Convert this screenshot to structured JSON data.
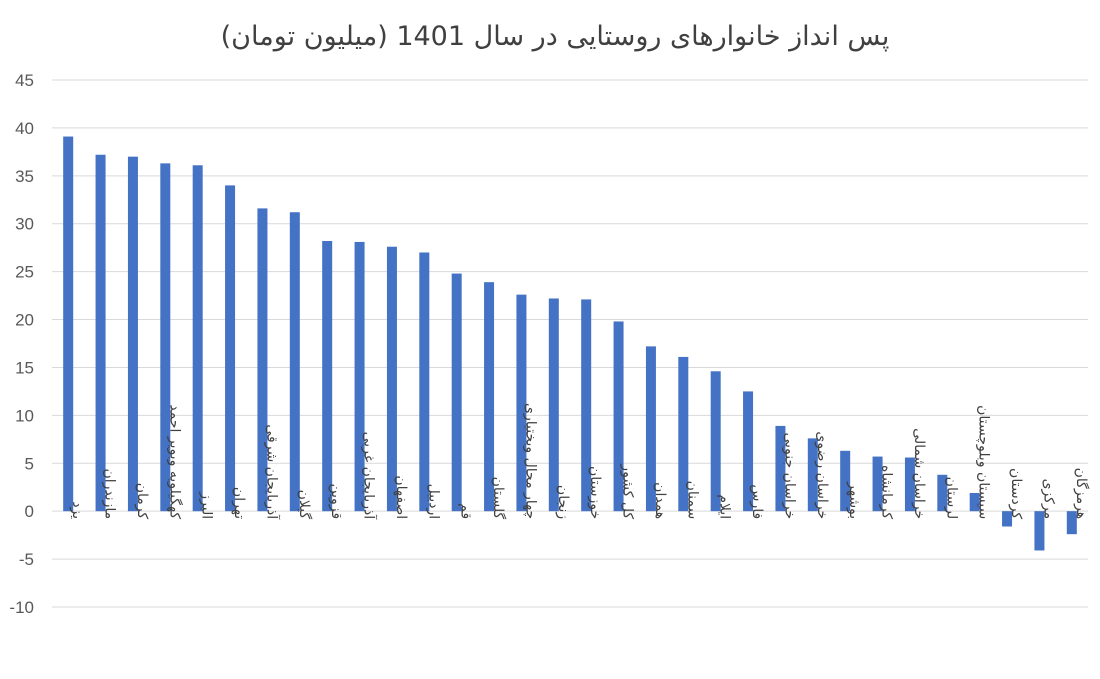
{
  "chart_data": {
    "type": "bar",
    "title": "پس انداز خانوارهای روستایی در سال 1401 (میلیون تومان)",
    "xlabel": "",
    "ylabel": "",
    "ylim": [
      -10,
      45
    ],
    "yticks": [
      45,
      40,
      35,
      30,
      25,
      20,
      15,
      10,
      5,
      0,
      -5,
      -10
    ],
    "grid": true,
    "legend": "none",
    "color": "#4472c4",
    "categories": [
      "یزد",
      "مازندران",
      "کرمان",
      "کهگیلویه وبویر احمد",
      "البرز",
      "تهران",
      "آذربایجان شرقی",
      "گیلان",
      "قزوین",
      "آذربایجان غربی",
      "اصفهان",
      "اردبیل",
      "قم",
      "گلستان",
      "چهار محال وبختیاری",
      "زنجان",
      "خوزستان",
      "کل کشور",
      "همدان",
      "سمنان",
      "ایلام",
      "فارس",
      "خراسان جنوبی",
      "خراسان رضوی",
      "بوشهر",
      "کرمانشاه",
      "خراسان شمالی",
      "لرستان",
      "سیستان وبلوچستان",
      "کردستان",
      "مرکزی",
      "هرمزگان"
    ],
    "values": [
      39.1,
      37.2,
      37.0,
      36.3,
      36.1,
      34.0,
      31.6,
      31.2,
      28.2,
      28.1,
      27.6,
      27.0,
      24.8,
      23.9,
      22.6,
      22.2,
      22.1,
      19.8,
      17.2,
      16.1,
      14.6,
      12.5,
      8.9,
      7.6,
      6.3,
      5.7,
      5.6,
      3.8,
      1.9,
      -1.6,
      -4.1,
      -2.4
    ]
  }
}
